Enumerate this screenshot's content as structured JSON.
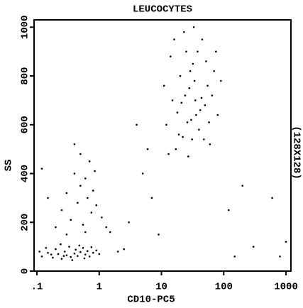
{
  "chart_data": {
    "type": "scatter",
    "title": "LEUCOCYTES",
    "x_label": "CD10-PC5",
    "y_label": "SS",
    "side_label": "(128X128)",
    "x_scale": "log",
    "color": "#000000",
    "xlim": [
      0.09,
      1200
    ],
    "xticks": [
      {
        "value": 0.1,
        "label": ".1"
      },
      1,
      10,
      100,
      1000
    ],
    "ylim": [
      0,
      1030
    ],
    "yticks": [
      0,
      200,
      400,
      600,
      800,
      1000
    ],
    "x": [
      0.12,
      0.15,
      0.18,
      0.2,
      0.22,
      0.25,
      0.28,
      0.3,
      0.33,
      0.35,
      0.4,
      0.42,
      0.45,
      0.5,
      0.55,
      0.6,
      0.65,
      0.7,
      0.8,
      0.9,
      0.11,
      0.14,
      0.17,
      0.24,
      0.27,
      0.37,
      0.48,
      0.58,
      0.75,
      1.0,
      0.2,
      0.25,
      0.3,
      0.35,
      0.4,
      0.45,
      0.5,
      0.55,
      0.6,
      0.65,
      0.7,
      0.75,
      0.8,
      0.9,
      1.1,
      1.3,
      0.3,
      0.5,
      0.15,
      0.12,
      0.6,
      0.4,
      0.85,
      1.5,
      12,
      15,
      18,
      20,
      22,
      25,
      28,
      30,
      32,
      35,
      40,
      45,
      50,
      55,
      60,
      70,
      80,
      14,
      17,
      23,
      27,
      33,
      38,
      42,
      48,
      52,
      65,
      11,
      16,
      19,
      21,
      24,
      26,
      29,
      31,
      34,
      36,
      44,
      58,
      75,
      13,
      90,
      3,
      5,
      2,
      7,
      150,
      300,
      600,
      1000,
      200,
      4,
      6,
      2.5,
      120,
      800,
      9
    ],
    "values": [
      60,
      75,
      55,
      90,
      70,
      50,
      80,
      65,
      100,
      58,
      72,
      88,
      62,
      78,
      95,
      68,
      82,
      60,
      75,
      85,
      80,
      95,
      68,
      110,
      62,
      45,
      105,
      52,
      98,
      70,
      180,
      250,
      320,
      210,
      400,
      280,
      350,
      190,
      380,
      300,
      450,
      240,
      330,
      270,
      220,
      180,
      150,
      480,
      300,
      420,
      160,
      520,
      410,
      160,
      600,
      700,
      650,
      800,
      550,
      900,
      750,
      620,
      850,
      700,
      580,
      950,
      680,
      760,
      520,
      820,
      640,
      880,
      500,
      980,
      470,
      1000,
      900,
      660,
      540,
      860,
      720,
      760,
      950,
      560,
      690,
      720,
      610,
      820,
      540,
      780,
      640,
      710,
      610,
      900,
      480,
      780,
      200,
      400,
      80,
      300,
      60,
      100,
      300,
      120,
      350,
      600,
      500,
      90,
      250,
      60,
      150
    ]
  }
}
